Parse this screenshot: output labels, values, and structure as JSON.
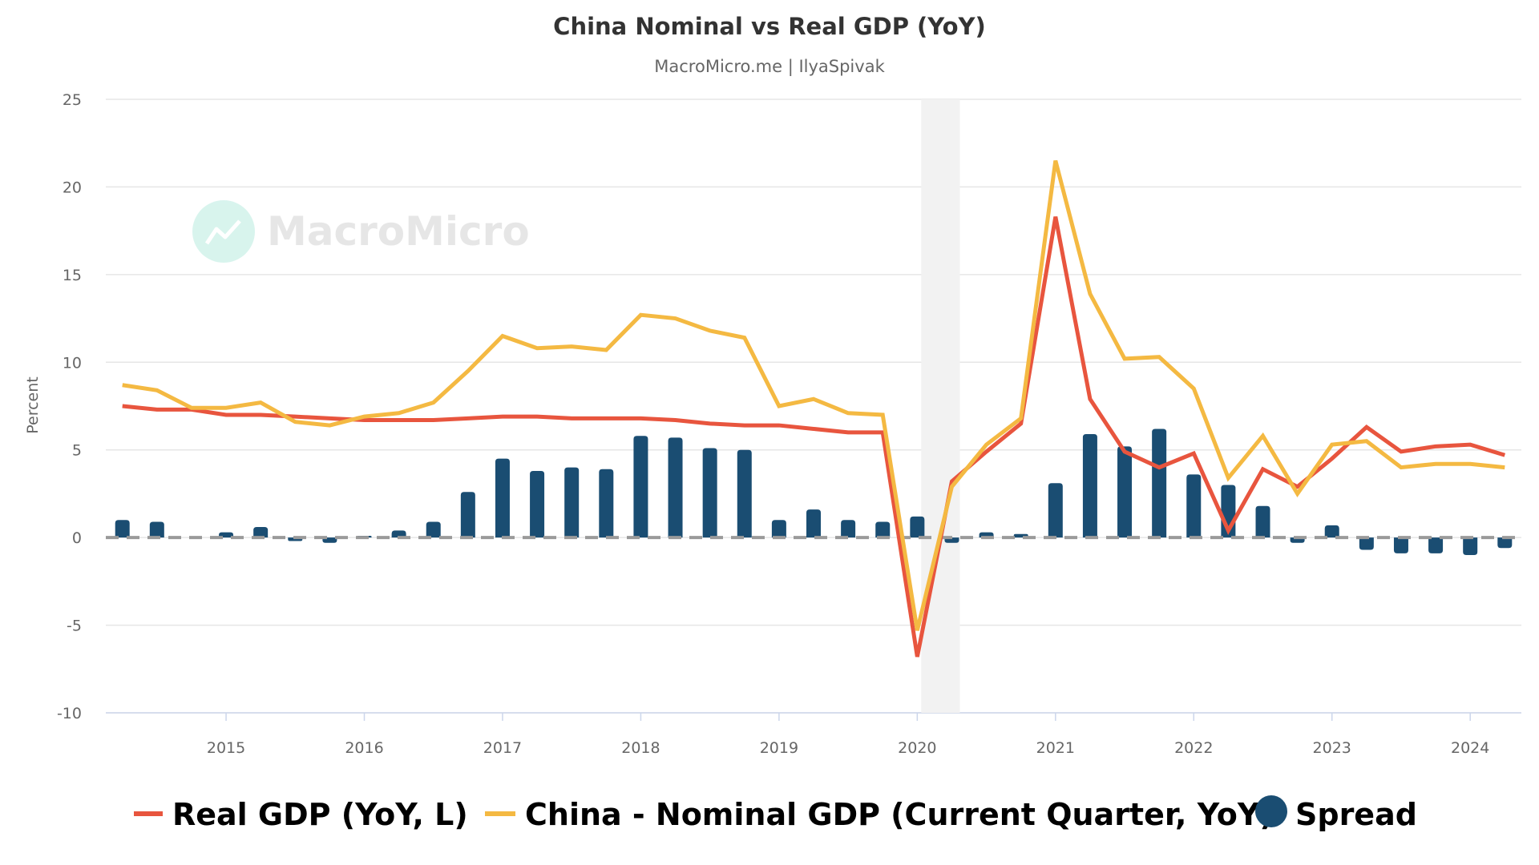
{
  "chart_data": {
    "type": "bar+line",
    "title": "China Nominal vs Real GDP (YoY)",
    "subtitle": "MacroMicro.me | IlyaSpivak",
    "watermark": "MacroMicro",
    "ylabel": "Percent",
    "xlabel": "",
    "ylim": [
      -10,
      25
    ],
    "yticks": [
      -10,
      -5,
      0,
      5,
      10,
      15,
      20,
      25
    ],
    "xlim": [
      2014.13,
      2024.37
    ],
    "xticks": [
      "2015",
      "2016",
      "2017",
      "2018",
      "2019",
      "2020",
      "2021",
      "2022",
      "2023",
      "2024"
    ],
    "grid": true,
    "legend_position": "bottom",
    "shaded_region": [
      "2020-01",
      "2020-04"
    ],
    "zero_line": "dashed",
    "x": [
      "2014Q1",
      "2014Q2",
      "2014Q3",
      "2014Q4",
      "2015Q1",
      "2015Q2",
      "2015Q3",
      "2015Q4",
      "2016Q1",
      "2016Q2",
      "2016Q3",
      "2016Q4",
      "2017Q1",
      "2017Q2",
      "2017Q3",
      "2017Q4",
      "2018Q1",
      "2018Q2",
      "2018Q3",
      "2018Q4",
      "2019Q1",
      "2019Q2",
      "2019Q3",
      "2019Q4",
      "2020Q1",
      "2020Q2",
      "2020Q3",
      "2020Q4",
      "2021Q1",
      "2021Q2",
      "2021Q3",
      "2021Q4",
      "2022Q1",
      "2022Q2",
      "2022Q3",
      "2022Q4",
      "2023Q1",
      "2023Q2",
      "2023Q3",
      "2023Q4",
      "2024Q1"
    ],
    "series": [
      {
        "name": "Real GDP (YoY, L)",
        "type": "line",
        "color": "#e8553e",
        "values": [
          7.5,
          7.3,
          7.3,
          7.0,
          7.0,
          6.9,
          6.8,
          6.7,
          6.7,
          6.7,
          6.8,
          6.9,
          6.9,
          6.8,
          6.8,
          6.8,
          6.7,
          6.5,
          6.4,
          6.4,
          6.2,
          6.0,
          6.0,
          -6.8,
          3.2,
          4.9,
          6.5,
          18.3,
          7.9,
          4.9,
          4.0,
          4.8,
          0.4,
          3.9,
          2.9,
          4.5,
          6.3,
          4.9,
          5.2,
          5.3,
          4.7
        ]
      },
      {
        "name": "China - Nominal GDP (Current Quarter, YoY)",
        "type": "line",
        "color": "#f4b942",
        "values": [
          8.7,
          8.4,
          7.4,
          7.4,
          7.7,
          6.6,
          6.4,
          6.9,
          7.1,
          7.7,
          9.5,
          11.5,
          10.8,
          10.9,
          10.7,
          12.7,
          12.5,
          11.8,
          11.4,
          7.5,
          7.9,
          7.1,
          7.0,
          -5.3,
          2.9,
          5.3,
          6.8,
          21.5,
          13.9,
          10.2,
          10.3,
          8.5,
          3.4,
          5.8,
          2.5,
          5.3,
          5.5,
          4.0,
          4.2,
          4.2,
          4.0
        ]
      },
      {
        "name": "Spread",
        "type": "bar",
        "color": "#1a4d72",
        "values": [
          1.0,
          0.9,
          0.0,
          0.3,
          0.6,
          -0.2,
          -0.3,
          0.1,
          0.4,
          0.9,
          2.6,
          4.5,
          3.8,
          4.0,
          3.9,
          5.8,
          5.7,
          5.1,
          5.0,
          1.0,
          1.6,
          1.0,
          0.9,
          1.2,
          -0.3,
          0.3,
          0.2,
          3.1,
          5.9,
          5.2,
          6.2,
          3.6,
          3.0,
          1.8,
          -0.3,
          0.7,
          -0.7,
          -0.9,
          -0.9,
          -1.0,
          -0.6
        ]
      }
    ]
  }
}
